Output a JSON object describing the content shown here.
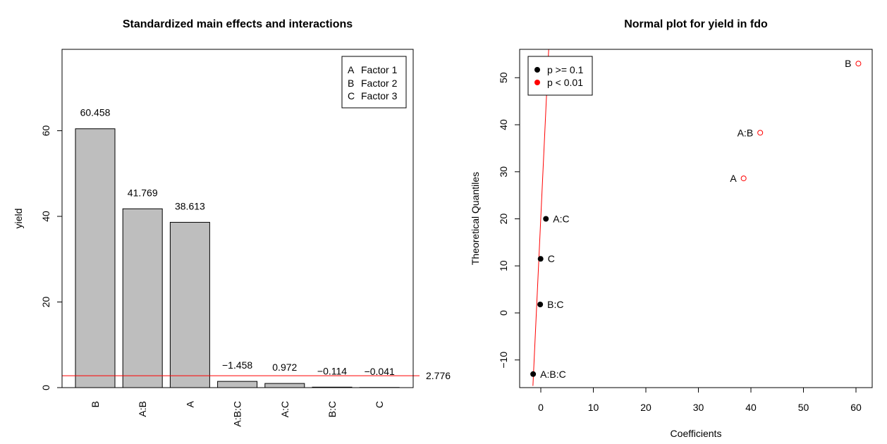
{
  "chart_data": [
    {
      "type": "bar",
      "title": "Standardized main effects and interactions",
      "xlabel": "",
      "ylabel": "yield",
      "categories": [
        "B",
        "A:B",
        "A",
        "A:B:C",
        "A:C",
        "B:C",
        "C"
      ],
      "values": [
        60.458,
        41.769,
        38.613,
        1.458,
        0.972,
        0.114,
        0.041
      ],
      "value_labels": [
        "60.458",
        "41.769",
        "38.613",
        "−1.458",
        "0.972",
        "−0.114",
        "−0.041"
      ],
      "ylim": [
        0,
        75
      ],
      "yticks": [
        "0",
        "20",
        "40",
        "60"
      ],
      "bar_color": "#bebebe",
      "reference_line": {
        "value": 2.776,
        "label": "2.776",
        "color": "#ff0000"
      },
      "legend": {
        "position": "top-right",
        "entries": [
          {
            "key": "A",
            "text": "Factor 1"
          },
          {
            "key": "B",
            "text": "Factor 2"
          },
          {
            "key": "C",
            "text": "Factor 3"
          }
        ]
      }
    },
    {
      "type": "scatter",
      "title": "Normal plot for yield in fdo",
      "xlabel": "Coefficients",
      "ylabel": "Theoretical Quantiles",
      "xlim": [
        -3,
        62.5
      ],
      "ylim": [
        -15.5,
        56
      ],
      "xticks": [
        "0",
        "10",
        "20",
        "30",
        "40",
        "50",
        "60"
      ],
      "yticks": [
        "−10",
        "0",
        "10",
        "20",
        "30",
        "40",
        "50"
      ],
      "points": [
        {
          "label": "A:B:C",
          "x": -1.458,
          "y": -13.0,
          "group": "p >= 0.1"
        },
        {
          "label": "B:C",
          "x": -0.114,
          "y": 1.8,
          "group": "p >= 0.1"
        },
        {
          "label": "C",
          "x": -0.041,
          "y": 11.5,
          "group": "p >= 0.1"
        },
        {
          "label": "A:C",
          "x": 0.972,
          "y": 20.0,
          "group": "p >= 0.1"
        },
        {
          "label": "A",
          "x": 38.613,
          "y": 28.6,
          "group": "p < 0.01"
        },
        {
          "label": "A:B",
          "x": 41.769,
          "y": 38.3,
          "group": "p < 0.01"
        },
        {
          "label": "B",
          "x": 60.458,
          "y": 53.0,
          "group": "p < 0.01"
        }
      ],
      "fit_line": {
        "x1": -1.5,
        "y1": -15.5,
        "x2": 1.5,
        "y2": 56,
        "color": "#ff0000"
      },
      "legend": {
        "position": "top-left",
        "entries": [
          {
            "text": "p >= 0.1",
            "color": "#000000"
          },
          {
            "text": "p < 0.01",
            "color": "#ff0000"
          }
        ]
      },
      "colors": {
        "insignificant": "#000000",
        "significant": "#ff0000"
      }
    }
  ]
}
